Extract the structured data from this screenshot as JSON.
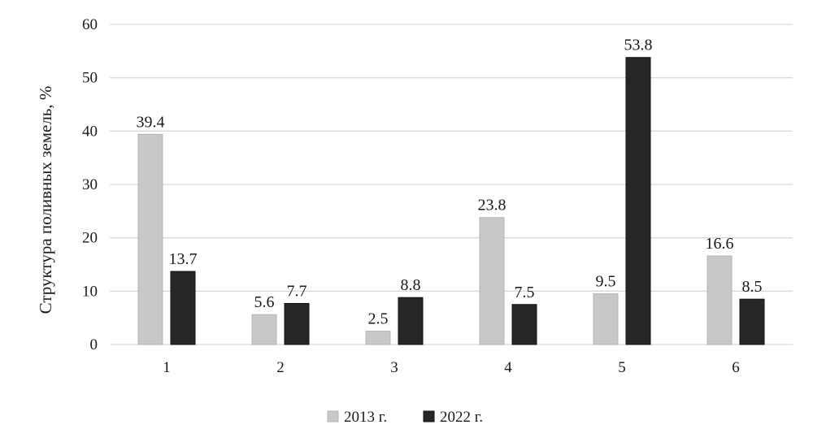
{
  "chart_data": {
    "type": "bar",
    "categories": [
      "1",
      "2",
      "3",
      "4",
      "5",
      "6"
    ],
    "series": [
      {
        "name": "2013 г.",
        "values": [
          39.4,
          5.6,
          2.5,
          23.8,
          9.5,
          16.6
        ],
        "color": "#c8c8c8"
      },
      {
        "name": "2022 г.",
        "values": [
          13.7,
          7.7,
          8.8,
          7.5,
          53.8,
          8.5
        ],
        "color": "#262626"
      }
    ],
    "ylabel": "Структура поливных земель, %",
    "xlabel": "",
    "ylim": [
      0,
      60
    ],
    "yticks": [
      "0",
      "10",
      "20",
      "30",
      "40",
      "50",
      "60"
    ],
    "grid": true,
    "legend": "bottom-center"
  }
}
